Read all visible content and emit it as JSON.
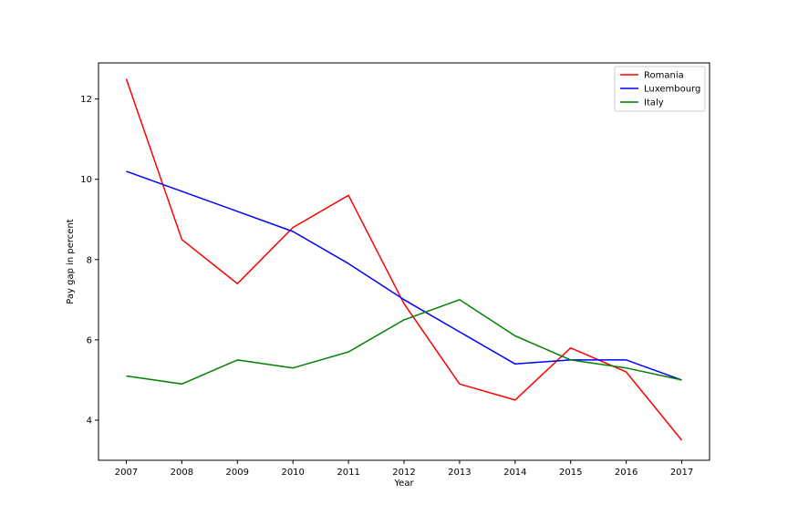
{
  "chart_data": {
    "type": "line",
    "title": "",
    "xlabel": "Year",
    "ylabel": "Pay gap in percent",
    "x": [
      2007,
      2008,
      2009,
      2010,
      2011,
      2012,
      2013,
      2014,
      2015,
      2016,
      2017
    ],
    "xlim": [
      2006.5,
      2017.5
    ],
    "ylim": [
      3.0,
      12.9
    ],
    "yticks": [
      4,
      6,
      8,
      10,
      12
    ],
    "grid": false,
    "legend_position": "top-right",
    "series": [
      {
        "name": "Romania",
        "color": "#ff0000",
        "values": [
          12.5,
          8.5,
          7.4,
          8.8,
          9.6,
          6.9,
          4.9,
          4.5,
          5.8,
          5.2,
          3.5
        ]
      },
      {
        "name": "Luxembourg",
        "color": "#0000ff",
        "values": [
          10.2,
          9.7,
          9.2,
          8.7,
          7.9,
          7.0,
          6.2,
          5.4,
          5.5,
          5.5,
          5.0
        ]
      },
      {
        "name": "Italy",
        "color": "#008000",
        "values": [
          5.1,
          4.9,
          5.5,
          5.3,
          5.7,
          6.5,
          7.0,
          6.1,
          5.5,
          5.3,
          5.0
        ]
      }
    ]
  }
}
